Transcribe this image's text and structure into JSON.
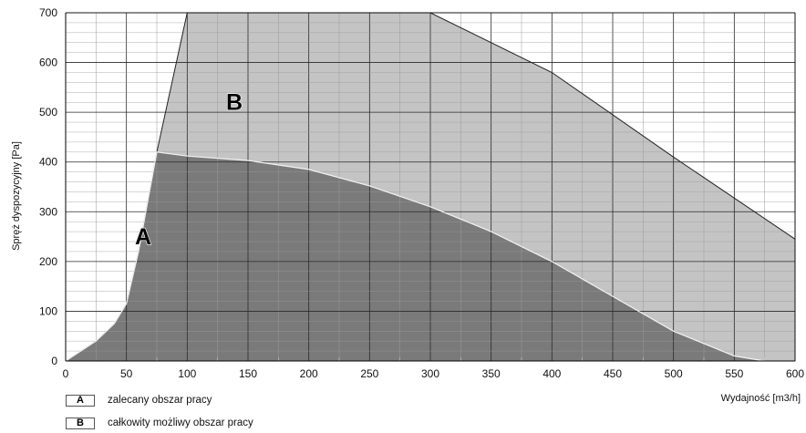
{
  "chart_data": {
    "type": "area",
    "xlabel": "Wydajność [m3/h]",
    "ylabel": "Spręż dyspozycyjny [Pa]",
    "xlim": [
      0,
      600
    ],
    "ylim": [
      0,
      700
    ],
    "x_ticks": [
      0,
      50,
      100,
      150,
      200,
      250,
      300,
      350,
      400,
      450,
      500,
      550,
      600
    ],
    "y_ticks": [
      0,
      100,
      200,
      300,
      400,
      500,
      600,
      700
    ],
    "grid": true,
    "legend_position": "bottom-left",
    "colors": {
      "A": "#7a7a7a",
      "B": "#c4c4c4",
      "grid": "#333333"
    },
    "series": [
      {
        "name": "A",
        "label": "zalecany obszar pracy",
        "x": [
          0,
          25,
          40,
          50,
          60,
          75,
          100,
          150,
          200,
          250,
          300,
          350,
          400,
          450,
          500,
          550,
          575
        ],
        "y": [
          0,
          40,
          75,
          115,
          220,
          420,
          412,
          403,
          385,
          352,
          310,
          260,
          200,
          130,
          60,
          10,
          0
        ]
      },
      {
        "name": "B",
        "label": "całkowity możliwy obszar pracy",
        "x": [
          0,
          25,
          40,
          50,
          60,
          75,
          100,
          300,
          400,
          500,
          600
        ],
        "y": [
          0,
          40,
          75,
          115,
          220,
          420,
          700,
          700,
          580,
          410,
          245
        ]
      }
    ],
    "annotations": [
      "A",
      "B"
    ]
  }
}
